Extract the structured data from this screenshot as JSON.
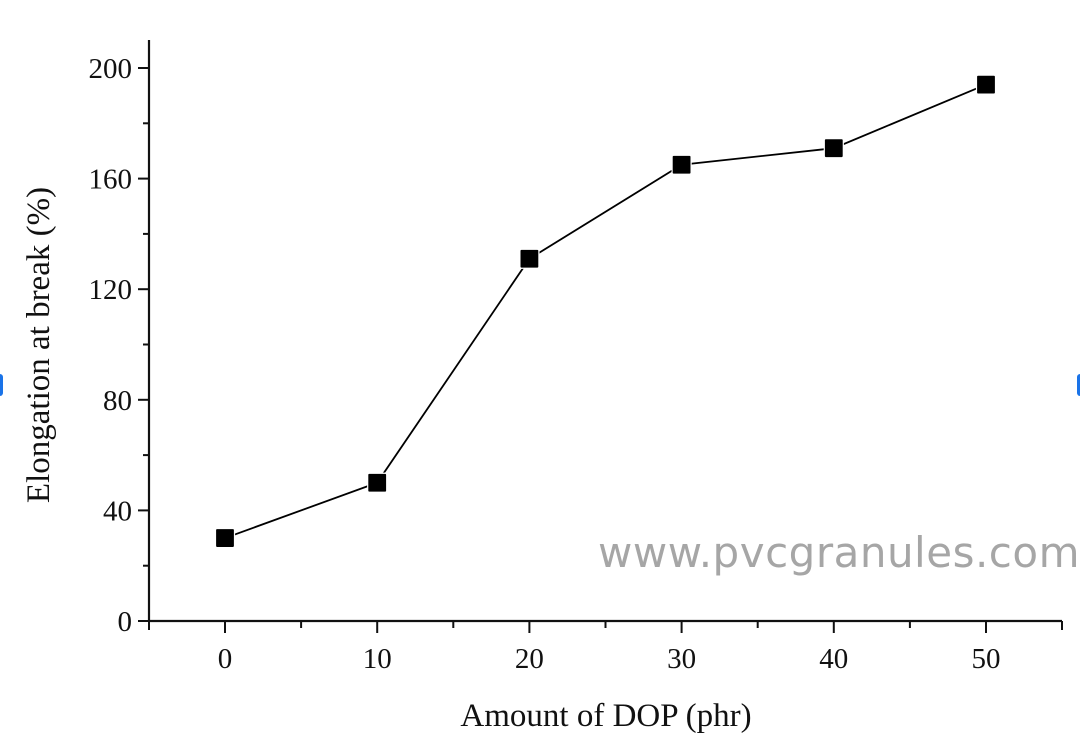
{
  "chart_data": {
    "type": "line",
    "title": "",
    "xlabel": "Amount of DOP (phr)",
    "ylabel": "Elongation at break (%)",
    "x": [
      0,
      10,
      20,
      30,
      40,
      50
    ],
    "series": [
      {
        "name": "Elongation at break",
        "values": [
          30,
          50,
          131,
          165,
          171,
          194
        ],
        "marker": "filled-square",
        "color": "#000000"
      }
    ],
    "xlim": [
      -5,
      55
    ],
    "ylim": [
      0,
      210
    ],
    "x_ticks": [
      0,
      10,
      20,
      30,
      40,
      50
    ],
    "x_tick_labels": [
      "0",
      "10",
      "20",
      "30",
      "40",
      "50"
    ],
    "x_minor_ticks": [
      5,
      15,
      25,
      35,
      45
    ],
    "y_ticks": [
      0,
      40,
      80,
      120,
      160,
      200
    ],
    "y_tick_labels": [
      "0",
      "40",
      "80",
      "120",
      "160",
      "200"
    ],
    "y_minor_ticks": [
      20,
      60,
      100,
      140,
      180
    ],
    "grid": false,
    "legend": null
  },
  "watermark": {
    "text": "www.pvcgranules.com",
    "color": "#a6a6a6"
  }
}
